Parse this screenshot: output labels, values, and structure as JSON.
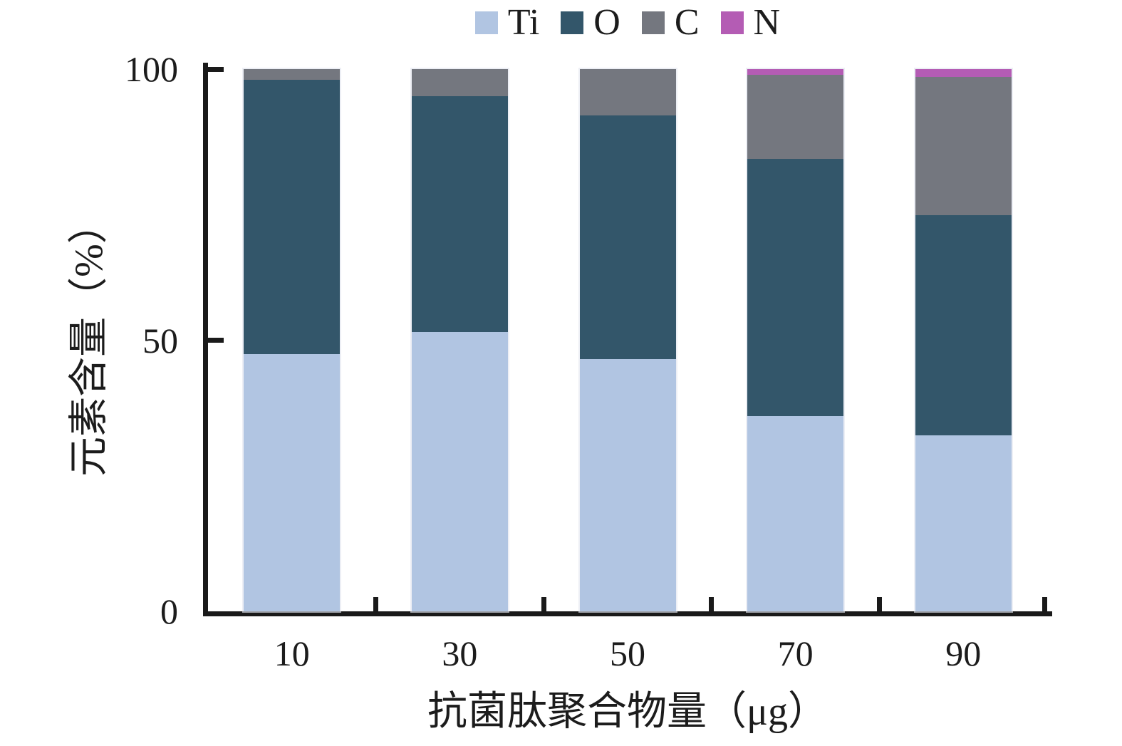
{
  "figure": {
    "background_color": "#ffffff",
    "axis_color": "#1a1a1a",
    "text_color": "#1c1c1c"
  },
  "chart_data": {
    "type": "bar",
    "stacked": true,
    "title": "",
    "xlabel": "抗菌肽聚合物量（μg）",
    "ylabel": "元素含量（%）",
    "categories": [
      "10",
      "30",
      "50",
      "70",
      "90"
    ],
    "series": [
      {
        "name": "Ti",
        "color": "#b1c5e2",
        "values": [
          47.5,
          51.5,
          46.5,
          36.0,
          32.5
        ]
      },
      {
        "name": "O",
        "color": "#33566a",
        "values": [
          50.5,
          43.5,
          45.0,
          47.5,
          40.5
        ]
      },
      {
        "name": "C",
        "color": "#74777f",
        "values": [
          2.0,
          5.0,
          8.5,
          15.5,
          25.5
        ]
      },
      {
        "name": "N",
        "color": "#b45cb4",
        "values": [
          0.0,
          0.0,
          0.0,
          1.0,
          1.5
        ]
      }
    ],
    "ylim": [
      0,
      100
    ],
    "yticks": [
      0,
      50,
      100
    ],
    "grid": false,
    "legend_position": "top-center",
    "legend_labels": [
      "Ti",
      "O",
      "C",
      "N"
    ]
  }
}
